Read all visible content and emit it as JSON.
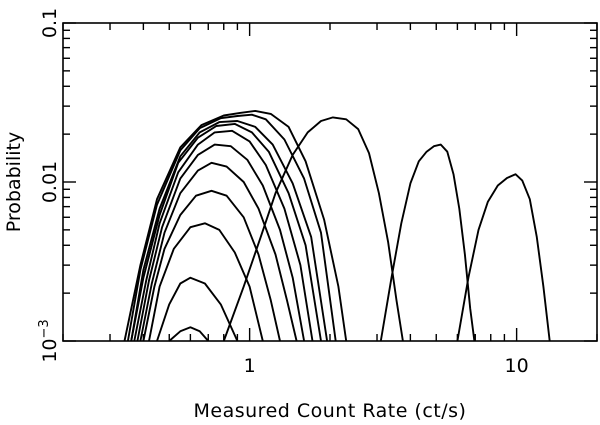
{
  "chart_data": {
    "type": "line",
    "xlabel": "Measured Count Rate (ct/s)",
    "ylabel": "Probability",
    "xscale": "log",
    "yscale": "log",
    "xlim": [
      0.2,
      20
    ],
    "ylim": [
      0.001,
      0.1
    ],
    "grid": false,
    "legend": "none",
    "line_color": "#000000",
    "xticks": [
      {
        "value": 1,
        "label": "1"
      },
      {
        "value": 10,
        "label": "10"
      }
    ],
    "yticks": [
      {
        "value": 0.001,
        "label": "10",
        "sup": "−3"
      },
      {
        "value": 0.01,
        "label": "0.01",
        "sup": ""
      },
      {
        "value": 0.1,
        "label": "0.1",
        "sup": ""
      }
    ],
    "series": [
      {
        "points": [
          [
            0.5,
            0.001
          ],
          [
            0.55,
            0.00115
          ],
          [
            0.6,
            0.00122
          ],
          [
            0.65,
            0.00115
          ],
          [
            0.7,
            0.001
          ]
        ]
      },
      {
        "points": [
          [
            0.45,
            0.001
          ],
          [
            0.5,
            0.0017
          ],
          [
            0.55,
            0.0023
          ],
          [
            0.6,
            0.0025
          ],
          [
            0.68,
            0.0023
          ],
          [
            0.78,
            0.0017
          ],
          [
            0.9,
            0.001
          ]
        ]
      },
      {
        "points": [
          [
            0.42,
            0.001
          ],
          [
            0.46,
            0.0022
          ],
          [
            0.52,
            0.0038
          ],
          [
            0.6,
            0.0052
          ],
          [
            0.68,
            0.0055
          ],
          [
            0.77,
            0.005
          ],
          [
            0.88,
            0.0036
          ],
          [
            1.0,
            0.0022
          ],
          [
            1.12,
            0.001
          ]
        ]
      },
      {
        "points": [
          [
            0.4,
            0.001
          ],
          [
            0.44,
            0.0022
          ],
          [
            0.48,
            0.0038
          ],
          [
            0.55,
            0.0062
          ],
          [
            0.63,
            0.0082
          ],
          [
            0.72,
            0.0088
          ],
          [
            0.82,
            0.0082
          ],
          [
            0.95,
            0.006
          ],
          [
            1.08,
            0.0035
          ],
          [
            1.2,
            0.0018
          ],
          [
            1.3,
            0.001
          ]
        ]
      },
      {
        "points": [
          [
            0.39,
            0.001
          ],
          [
            0.43,
            0.0023
          ],
          [
            0.48,
            0.0048
          ],
          [
            0.55,
            0.0085
          ],
          [
            0.64,
            0.0118
          ],
          [
            0.72,
            0.0132
          ],
          [
            0.82,
            0.0125
          ],
          [
            0.95,
            0.01
          ],
          [
            1.08,
            0.0068
          ],
          [
            1.25,
            0.0035
          ],
          [
            1.38,
            0.0018
          ],
          [
            1.5,
            0.001
          ]
        ]
      },
      {
        "points": [
          [
            0.38,
            0.001
          ],
          [
            0.42,
            0.0024
          ],
          [
            0.47,
            0.0052
          ],
          [
            0.55,
            0.0105
          ],
          [
            0.64,
            0.0148
          ],
          [
            0.74,
            0.0172
          ],
          [
            0.85,
            0.0168
          ],
          [
            0.98,
            0.0138
          ],
          [
            1.12,
            0.0095
          ],
          [
            1.3,
            0.005
          ],
          [
            1.45,
            0.0025
          ],
          [
            1.6,
            0.001
          ]
        ]
      },
      {
        "points": [
          [
            0.37,
            0.001
          ],
          [
            0.41,
            0.0024
          ],
          [
            0.46,
            0.0055
          ],
          [
            0.54,
            0.0115
          ],
          [
            0.64,
            0.0172
          ],
          [
            0.74,
            0.0205
          ],
          [
            0.86,
            0.021
          ],
          [
            1.0,
            0.018
          ],
          [
            1.15,
            0.0128
          ],
          [
            1.35,
            0.0068
          ],
          [
            1.55,
            0.003
          ],
          [
            1.72,
            0.001
          ]
        ]
      },
      {
        "points": [
          [
            0.36,
            0.001
          ],
          [
            0.4,
            0.0025
          ],
          [
            0.46,
            0.0062
          ],
          [
            0.54,
            0.0132
          ],
          [
            0.64,
            0.019
          ],
          [
            0.75,
            0.0225
          ],
          [
            0.88,
            0.0232
          ],
          [
            1.02,
            0.0205
          ],
          [
            1.18,
            0.0155
          ],
          [
            1.4,
            0.0085
          ],
          [
            1.62,
            0.004
          ],
          [
            1.85,
            0.001
          ]
        ]
      },
      {
        "points": [
          [
            0.36,
            0.001
          ],
          [
            0.4,
            0.0028
          ],
          [
            0.46,
            0.0068
          ],
          [
            0.55,
            0.0145
          ],
          [
            0.65,
            0.0205
          ],
          [
            0.77,
            0.0238
          ],
          [
            0.9,
            0.0242
          ],
          [
            1.05,
            0.0222
          ],
          [
            1.22,
            0.0172
          ],
          [
            1.45,
            0.0098
          ],
          [
            1.7,
            0.0045
          ],
          [
            1.95,
            0.001
          ]
        ]
      },
      {
        "points": [
          [
            0.35,
            0.001
          ],
          [
            0.39,
            0.0028
          ],
          [
            0.45,
            0.0072
          ],
          [
            0.55,
            0.0158
          ],
          [
            0.65,
            0.0218
          ],
          [
            0.78,
            0.0252
          ],
          [
            0.9,
            0.026
          ],
          [
            1.02,
            0.0265
          ],
          [
            1.15,
            0.0248
          ],
          [
            1.35,
            0.0185
          ],
          [
            1.6,
            0.0105
          ],
          [
            1.85,
            0.0048
          ],
          [
            2.1,
            0.001
          ]
        ]
      },
      {
        "points": [
          [
            0.34,
            0.001
          ],
          [
            0.39,
            0.003
          ],
          [
            0.45,
            0.0078
          ],
          [
            0.55,
            0.0165
          ],
          [
            0.66,
            0.0228
          ],
          [
            0.8,
            0.0262
          ],
          [
            0.92,
            0.0272
          ],
          [
            1.05,
            0.028
          ],
          [
            1.2,
            0.0268
          ],
          [
            1.4,
            0.0222
          ],
          [
            1.62,
            0.0135
          ],
          [
            1.9,
            0.0058
          ],
          [
            2.15,
            0.0022
          ],
          [
            2.3,
            0.001
          ]
        ]
      },
      {
        "points": [
          [
            0.8,
            0.001
          ],
          [
            0.95,
            0.0022
          ],
          [
            1.1,
            0.0045
          ],
          [
            1.25,
            0.0085
          ],
          [
            1.45,
            0.0148
          ],
          [
            1.65,
            0.0205
          ],
          [
            1.85,
            0.0242
          ],
          [
            2.05,
            0.0255
          ],
          [
            2.3,
            0.0248
          ],
          [
            2.55,
            0.0215
          ],
          [
            2.8,
            0.0152
          ],
          [
            3.05,
            0.0085
          ],
          [
            3.3,
            0.0042
          ],
          [
            3.55,
            0.0018
          ],
          [
            3.75,
            0.001
          ]
        ]
      },
      {
        "points": [
          [
            3.1,
            0.001
          ],
          [
            3.4,
            0.0025
          ],
          [
            3.7,
            0.0055
          ],
          [
            4.0,
            0.0098
          ],
          [
            4.3,
            0.0135
          ],
          [
            4.6,
            0.0155
          ],
          [
            4.9,
            0.0168
          ],
          [
            5.2,
            0.0172
          ],
          [
            5.5,
            0.0155
          ],
          [
            5.8,
            0.0112
          ],
          [
            6.1,
            0.0068
          ],
          [
            6.4,
            0.0035
          ],
          [
            6.7,
            0.0016
          ],
          [
            6.95,
            0.001
          ]
        ]
      },
      {
        "points": [
          [
            6.0,
            0.001
          ],
          [
            6.6,
            0.0025
          ],
          [
            7.2,
            0.005
          ],
          [
            7.8,
            0.0075
          ],
          [
            8.5,
            0.0095
          ],
          [
            9.2,
            0.0106
          ],
          [
            9.9,
            0.0112
          ],
          [
            10.5,
            0.0102
          ],
          [
            11.2,
            0.0078
          ],
          [
            11.9,
            0.0045
          ],
          [
            12.6,
            0.0022
          ],
          [
            13.3,
            0.001
          ]
        ]
      }
    ]
  }
}
